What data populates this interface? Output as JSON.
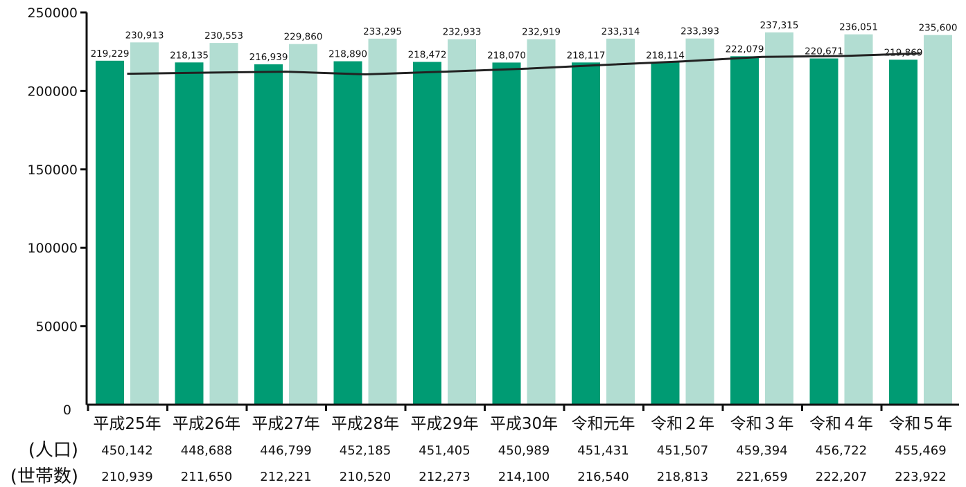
{
  "chart_data": {
    "type": "bar",
    "categories": [
      "平成25年",
      "平成26年",
      "平成27年",
      "平成28年",
      "平成29年",
      "平成30年",
      "令和元年",
      "令和２年",
      "令和３年",
      "令和４年",
      "令和５年"
    ],
    "series": [
      {
        "type": "bar",
        "color": "#009b73",
        "values": [
          219229,
          218135,
          216939,
          218890,
          218472,
          218070,
          218117,
          218114,
          222079,
          220671,
          219869
        ],
        "labels": [
          "219,229",
          "218,135",
          "216,939",
          "218,890",
          "218,472",
          "218,070",
          "218,117",
          "218,114",
          "222,079",
          "220,671",
          "219,869"
        ]
      },
      {
        "type": "bar",
        "color": "#b2ddd2",
        "values": [
          230913,
          230553,
          229860,
          233295,
          232933,
          232919,
          233314,
          233393,
          237315,
          236051,
          235600
        ],
        "labels": [
          "230,913",
          "230,553",
          "229,860",
          "233,295",
          "232,933",
          "232,919",
          "233,314",
          "233,393",
          "237,315",
          "236,051",
          "235,600"
        ]
      },
      {
        "type": "line",
        "color": "#222222",
        "values": [
          210939,
          211650,
          212221,
          210520,
          212273,
          214100,
          216540,
          218813,
          221659,
          222207,
          223922
        ]
      }
    ],
    "ylim": [
      0,
      250000
    ],
    "yticks": [
      0,
      50000,
      100000,
      150000,
      200000,
      250000
    ],
    "ytick_labels": [
      "0",
      "50000",
      "100000",
      "150000",
      "200000",
      "250000"
    ],
    "grid": false,
    "table": {
      "rows": [
        {
          "header": "(人口)",
          "values": [
            "450,142",
            "448,688",
            "446,799",
            "452,185",
            "451,405",
            "450,989",
            "451,431",
            "451,507",
            "459,394",
            "456,722",
            "455,469"
          ]
        },
        {
          "header": "(世帯数)",
          "values": [
            "210,939",
            "211,650",
            "212,221",
            "210,520",
            "212,273",
            "214,100",
            "216,540",
            "218,813",
            "221,659",
            "222,207",
            "223,922"
          ]
        }
      ]
    }
  }
}
